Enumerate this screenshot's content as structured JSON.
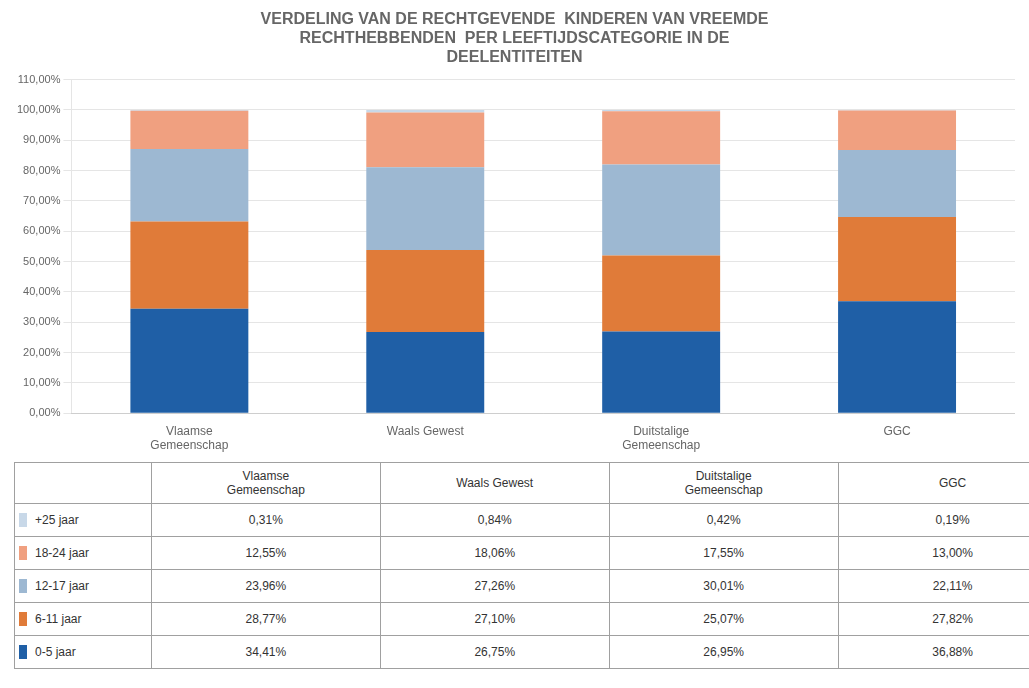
{
  "chart_data": {
    "type": "bar",
    "title": "VERDELING VAN DE RECHTGEVENDE  KINDEREN VAN VREEMDE\nRECHTHEBBENDEN  PER LEEFTIJDSCATEGORIE IN DE\nDEELENTITEITEN",
    "categories": [
      "Vlaamse\nGemeenschap",
      "Waals Gewest",
      "Duitstalige\nGemeenschap",
      "GGC"
    ],
    "stacked": true,
    "grid": true,
    "series": [
      {
        "name": "0-5 jaar",
        "color": "#1f5fa6",
        "values": [
          34.41,
          26.75,
          26.95,
          36.88
        ],
        "value_labels": [
          "34,41%",
          "26,75%",
          "26,95%",
          "36,88%"
        ]
      },
      {
        "name": "6-11 jaar",
        "color": "#e07b39",
        "values": [
          28.77,
          27.1,
          25.07,
          27.82
        ],
        "value_labels": [
          "28,77%",
          "27,10%",
          "25,07%",
          "27,82%"
        ]
      },
      {
        "name": "12-17 jaar",
        "color": "#9db8d2",
        "values": [
          23.96,
          27.26,
          30.01,
          22.11
        ],
        "value_labels": [
          "23,96%",
          "27,26%",
          "30,01%",
          "22,11%"
        ]
      },
      {
        "name": "18-24 jaar",
        "color": "#f0a080",
        "values": [
          12.55,
          18.06,
          17.55,
          13.0
        ],
        "value_labels": [
          "12,55%",
          "18,06%",
          "17,55%",
          "13,00%"
        ]
      },
      {
        "name": "+25 jaar",
        "color": "#c8d8e8",
        "values": [
          0.31,
          0.84,
          0.42,
          0.19
        ],
        "value_labels": [
          "0,31%",
          "0,84%",
          "0,42%",
          "0,19%"
        ]
      }
    ],
    "ylim": [
      0,
      110
    ],
    "yticks": [
      {
        "value": 0,
        "label": "0,00%"
      },
      {
        "value": 10,
        "label": "10,00%"
      },
      {
        "value": 20,
        "label": "20,00%"
      },
      {
        "value": 30,
        "label": "30,00%"
      },
      {
        "value": 40,
        "label": "40,00%"
      },
      {
        "value": 50,
        "label": "50,00%"
      },
      {
        "value": 60,
        "label": "60,00%"
      },
      {
        "value": 70,
        "label": "70,00%"
      },
      {
        "value": 80,
        "label": "80,00%"
      },
      {
        "value": 90,
        "label": "90,00%"
      },
      {
        "value": 100,
        "label": "100,00%"
      },
      {
        "value": 110,
        "label": "110,00%"
      }
    ]
  }
}
